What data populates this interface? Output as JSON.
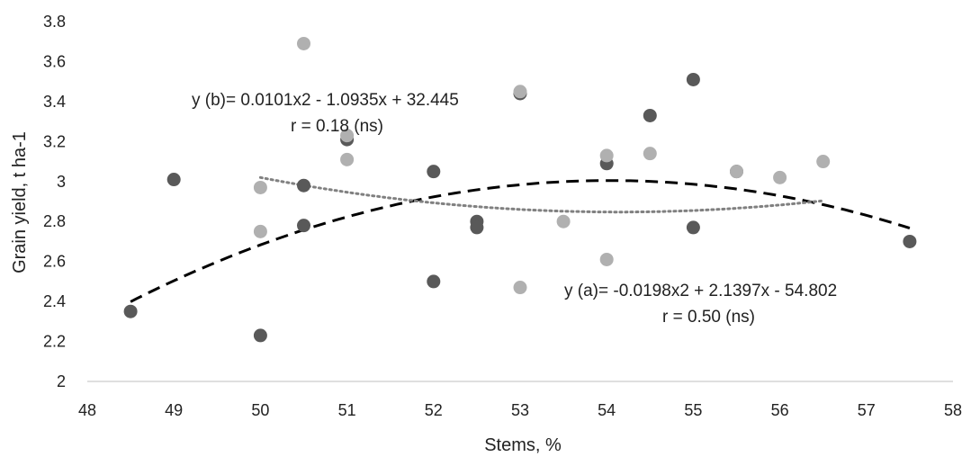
{
  "chart_data": {
    "type": "scatter",
    "title": "",
    "xlabel": "Stems, %",
    "ylabel": "Grain yield, t ha-1",
    "xlim": [
      48,
      58
    ],
    "ylim": [
      2,
      3.8
    ],
    "x_ticks": [
      48,
      49,
      50,
      51,
      52,
      53,
      54,
      55,
      56,
      57,
      58
    ],
    "y_ticks": [
      2,
      2.2,
      2.4,
      2.6,
      2.8,
      3,
      3.2,
      3.4,
      3.6,
      3.8
    ],
    "x_tick_labels": [
      "48",
      "49",
      "50",
      "51",
      "52",
      "53",
      "54",
      "55",
      "56",
      "57",
      "58"
    ],
    "y_tick_labels": [
      "2",
      "2.2",
      "2.4",
      "2.6",
      "2.8",
      "3",
      "3.2",
      "3.4",
      "3.6",
      "3.8"
    ],
    "grid": false,
    "legend": "none",
    "series": [
      {
        "key": "a",
        "color": "#595959",
        "points": [
          [
            48.5,
            2.35
          ],
          [
            49,
            3.01
          ],
          [
            50,
            2.23
          ],
          [
            50.5,
            2.98
          ],
          [
            50.5,
            2.78
          ],
          [
            51,
            3.21
          ],
          [
            52,
            3.05
          ],
          [
            52,
            2.5
          ],
          [
            52.5,
            2.8
          ],
          [
            52.5,
            2.77
          ],
          [
            53,
            3.44
          ],
          [
            54,
            3.09
          ],
          [
            54.5,
            3.33
          ],
          [
            55,
            3.51
          ],
          [
            55,
            2.77
          ],
          [
            55.5,
            3.05
          ],
          [
            57.5,
            2.7
          ]
        ],
        "trendline": {
          "style": "dashed",
          "color": "#000000",
          "x_range": [
            48.5,
            57.5
          ],
          "coefficients": [
            -0.0198,
            2.1397,
            -54.802
          ]
        }
      },
      {
        "key": "b",
        "color": "#b0b0b0",
        "points": [
          [
            50,
            2.97
          ],
          [
            50,
            2.75
          ],
          [
            50.5,
            3.69
          ],
          [
            51,
            3.23
          ],
          [
            51,
            3.11
          ],
          [
            53,
            3.45
          ],
          [
            53,
            2.47
          ],
          [
            53.5,
            2.8
          ],
          [
            54,
            3.13
          ],
          [
            54,
            2.61
          ],
          [
            54.5,
            3.14
          ],
          [
            55.5,
            3.05
          ],
          [
            56,
            3.02
          ],
          [
            56.5,
            3.1
          ]
        ],
        "trendline": {
          "style": "dotted",
          "color": "#808080",
          "x_range": [
            50,
            56.5
          ],
          "coefficients": [
            0.0101,
            -1.0935,
            32.445
          ]
        }
      }
    ],
    "annotations": {
      "eq_b": "y (b)= 0.0101x2 - 1.0935x + 32.445",
      "r_b": "r = 0.18 (ns)",
      "eq_a": "y (a)= -0.0198x2 + 2.1397x - 54.802",
      "r_a": "r = 0.50 (ns)"
    }
  }
}
